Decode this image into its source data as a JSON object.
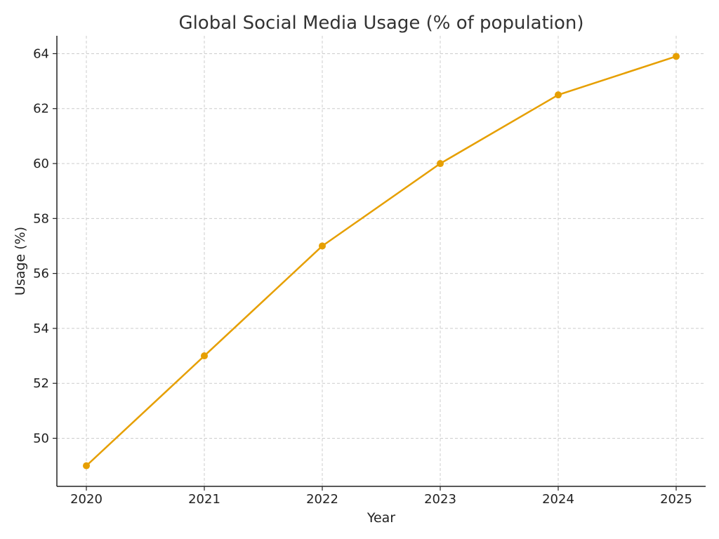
{
  "chart_data": {
    "type": "line",
    "title": "Global Social Media Usage (% of population)",
    "xlabel": "Year",
    "ylabel": "Usage (%)",
    "x": [
      "2020",
      "2021",
      "2022",
      "2023",
      "2024",
      "2025"
    ],
    "series": [
      {
        "values": [
          49,
          53,
          57,
          60,
          62.5,
          63.9
        ],
        "color": "#E69F00"
      }
    ],
    "y_ticks": [
      50,
      52,
      54,
      56,
      58,
      60,
      62,
      64
    ],
    "ylim": [
      48.25,
      64.65
    ],
    "grid": true,
    "marker": "circle"
  }
}
